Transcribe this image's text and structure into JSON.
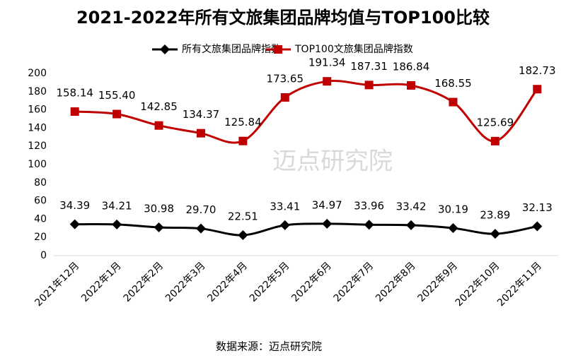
{
  "chart_data": {
    "type": "line",
    "title": "2021-2022年所有文旅集团品牌均值与TOP100比较",
    "categories": [
      "2021年12月",
      "2022年1月",
      "2022年2月",
      "2022年3月",
      "2022年4月",
      "2022年5月",
      "2022年6月",
      "2022年7月",
      "2022年8月",
      "2022年9月",
      "2022年10月",
      "2022年11月"
    ],
    "series": [
      {
        "name": "所有文旅集团品牌指数",
        "color": "#000000",
        "marker": "diamond",
        "values": [
          34.39,
          34.21,
          30.98,
          29.7,
          22.51,
          33.41,
          34.97,
          33.96,
          33.42,
          30.19,
          23.89,
          32.13
        ],
        "value_labels": [
          "34.39",
          "34.21",
          "30.98",
          "29.70",
          "22.51",
          "33.41",
          "34.97",
          "33.96",
          "33.42",
          "30.19",
          "23.89",
          "32.13"
        ]
      },
      {
        "name": "TOP100文旅集团品牌指数",
        "color": "#c00000",
        "marker": "square",
        "values": [
          158.14,
          155.4,
          142.85,
          134.37,
          125.84,
          173.65,
          191.34,
          187.31,
          186.84,
          168.55,
          125.69,
          182.73
        ],
        "value_labels": [
          "158.14",
          "155.40",
          "142.85",
          "134.37",
          "125.84",
          "173.65",
          "191.34",
          "187.31",
          "186.84",
          "168.55",
          "125.69",
          "182.73"
        ]
      }
    ],
    "ylim": [
      0,
      200
    ],
    "yticks": [
      0,
      20,
      40,
      60,
      80,
      100,
      120,
      140,
      160,
      180,
      200
    ],
    "grid": false,
    "legend": "top",
    "smooth": true,
    "source": "数据来源：迈点研究院",
    "watermark": "迈点研究院"
  }
}
